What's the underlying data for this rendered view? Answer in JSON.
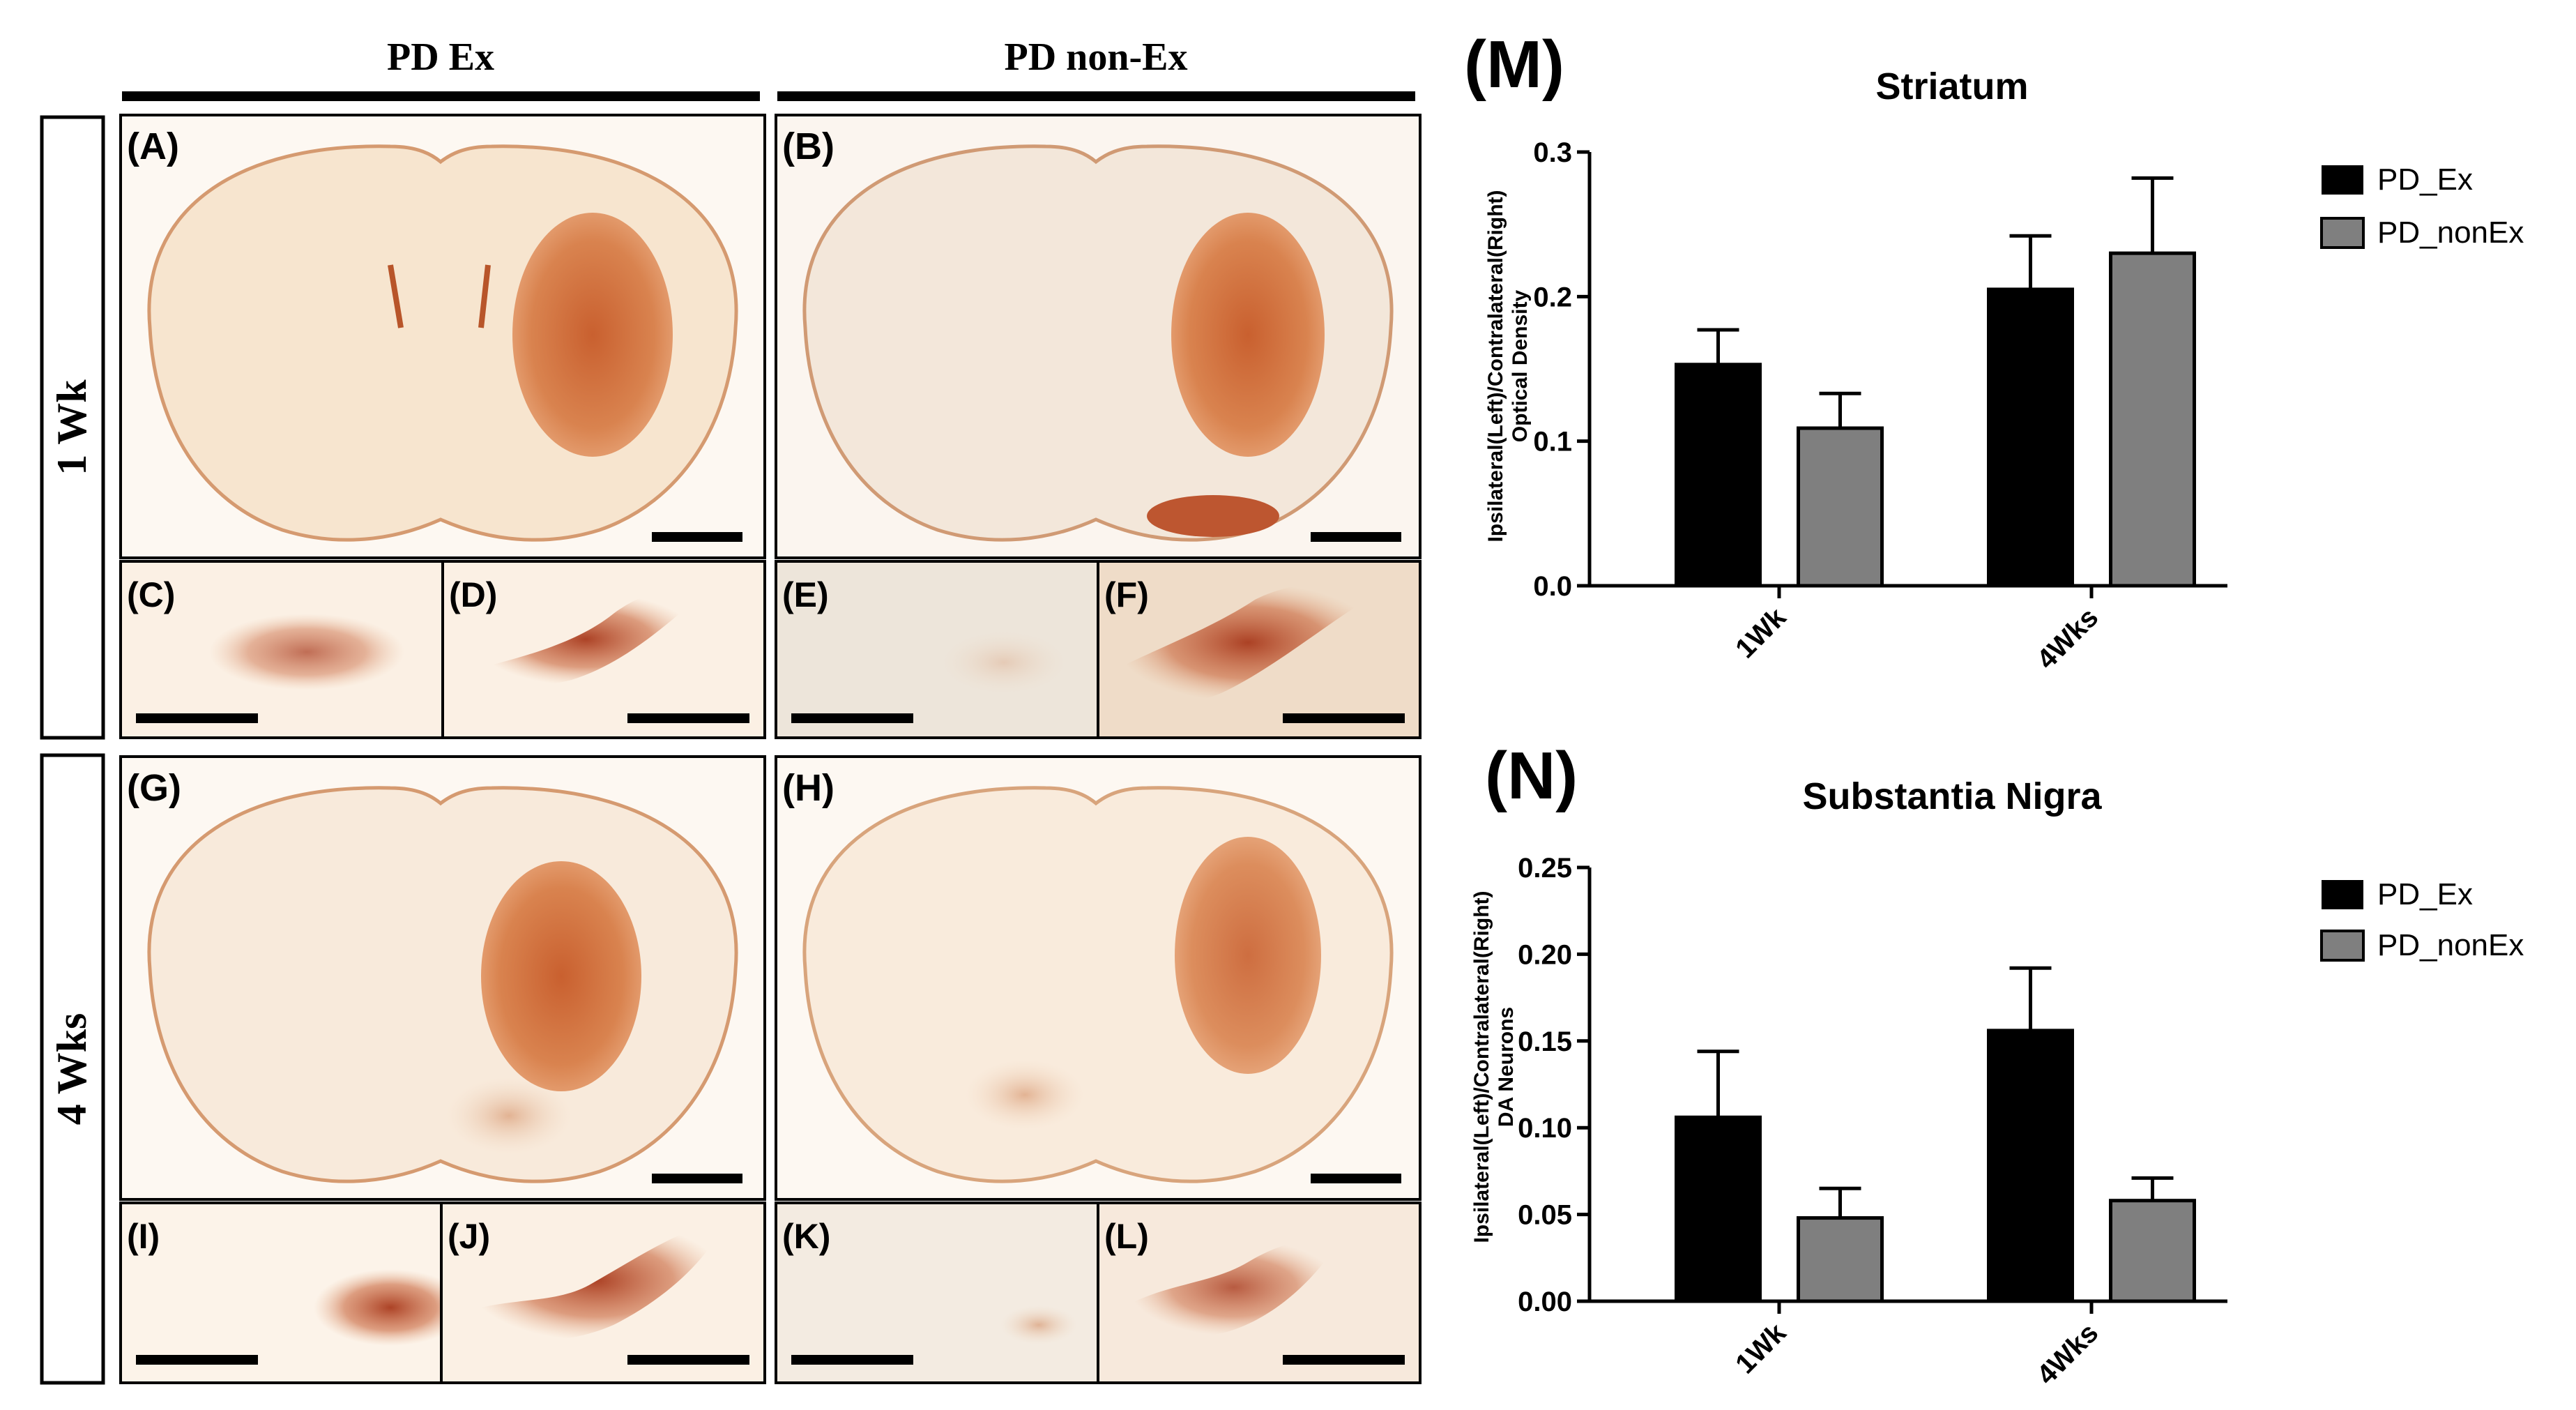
{
  "column_headers": [
    "PD Ex",
    "PD non-Ex"
  ],
  "row_labels": [
    "1 Wk",
    "4 Wks"
  ],
  "micrograph_panels": [
    "(A)",
    "(B)",
    "(C)",
    "(D)",
    "(E)",
    "(F)",
    "(G)",
    "(H)",
    "(I)",
    "(J)",
    "(K)",
    "(L)"
  ],
  "colors": {
    "pd_ex": "#000000",
    "pd_nonex": "#7f7f7f",
    "tissue": "#f6e2cc",
    "stain": "#cf6e3d",
    "background": "#ffffff"
  },
  "chart_data": [
    {
      "panel": "(M)",
      "type": "bar",
      "title": "Striatum",
      "ylabel_line1": "Ipsilateral(Left)/Contralateral(Right)",
      "ylabel_line2": "Optical Density",
      "xlabel": "",
      "categories": [
        "1Wk",
        "4Wks"
      ],
      "series": [
        {
          "name": "PD_Ex",
          "values": [
            0.153,
            0.205
          ],
          "errors": [
            0.024,
            0.037
          ]
        },
        {
          "name": "PD_nonEx",
          "values": [
            0.109,
            0.23
          ],
          "errors": [
            0.024,
            0.052
          ]
        }
      ],
      "ylim": [
        0,
        0.3
      ],
      "yticks": [
        "0.0",
        "0.1",
        "0.2",
        "0.3"
      ],
      "ytick_values": [
        0,
        0.1,
        0.2,
        0.3
      ],
      "legend": "top-right"
    },
    {
      "panel": "(N)",
      "type": "bar",
      "title": "Substantia Nigra",
      "ylabel_line1": "Ipsilateral(Left)/Contralateral(Right)",
      "ylabel_line2": "DA Neurons",
      "xlabel": "",
      "categories": [
        "1Wk",
        "4Wks"
      ],
      "series": [
        {
          "name": "PD_Ex",
          "values": [
            0.106,
            0.156
          ],
          "errors": [
            0.038,
            0.036
          ]
        },
        {
          "name": "PD_nonEx",
          "values": [
            0.048,
            0.058
          ],
          "errors": [
            0.017,
            0.013
          ]
        }
      ],
      "ylim": [
        0,
        0.25
      ],
      "yticks": [
        "0.00",
        "0.05",
        "0.10",
        "0.15",
        "0.20",
        "0.25"
      ],
      "ytick_values": [
        0,
        0.05,
        0.1,
        0.15,
        0.2,
        0.25
      ],
      "legend": "top-right"
    }
  ]
}
